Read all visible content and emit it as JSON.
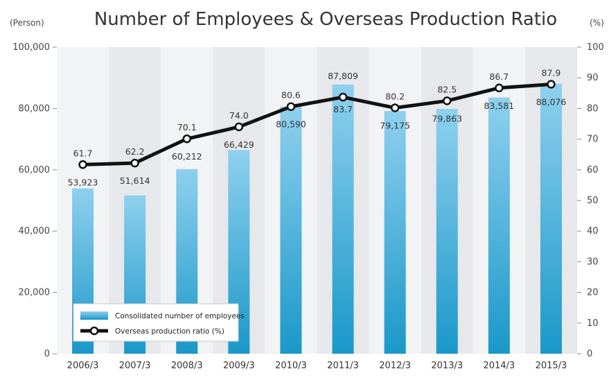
{
  "chart_data": {
    "type": "bar",
    "title": "Number of Employees & Overseas Production Ratio",
    "categories": [
      "2006/3",
      "2007/3",
      "2008/3",
      "2009/3",
      "2010/3",
      "2011/3",
      "2012/3",
      "2013/3",
      "2014/3",
      "2015/3"
    ],
    "left_axis": {
      "unit": "(Person)",
      "ylim": [
        0,
        100000
      ],
      "ticks": [
        0,
        20000,
        40000,
        60000,
        80000,
        100000
      ],
      "tick_labels": [
        "0",
        "20,000",
        "40,000",
        "60,000",
        "80,000",
        "100,000"
      ]
    },
    "right_axis": {
      "unit": "(%)",
      "ylim": [
        0,
        100
      ],
      "ticks": [
        0,
        10,
        20,
        30,
        40,
        50,
        60,
        70,
        80,
        90,
        100
      ],
      "tick_labels": [
        "0",
        "10",
        "20",
        "30",
        "40",
        "50",
        "60",
        "70",
        "80",
        "90",
        "100"
      ]
    },
    "series": [
      {
        "name": "Consolidated number of employees",
        "type": "bar",
        "axis": "left",
        "values": [
          53923,
          51614,
          60212,
          66429,
          80590,
          87809,
          79175,
          79863,
          83581,
          88076
        ],
        "labels": [
          "53,923",
          "51,614",
          "60,212",
          "66,429",
          "80,590",
          "87,809",
          "79,175",
          "79,863",
          "83,581",
          "88,076"
        ]
      },
      {
        "name": "Overseas production ratio (%)",
        "type": "line",
        "axis": "right",
        "values": [
          61.7,
          62.2,
          70.1,
          74.0,
          80.6,
          83.7,
          80.2,
          82.5,
          86.7,
          87.9
        ],
        "labels": [
          "61.7",
          "62.2",
          "70.1",
          "74.0",
          "80.6",
          "83.7",
          "80.2",
          "82.5",
          "86.7",
          "87.9"
        ]
      }
    ],
    "grid": false,
    "legend": "bottom-left",
    "colors": {
      "bar_top": "#8fd0ee",
      "bar_bottom": "#1a98c9",
      "line": "#111111",
      "marker_fill": "#ffffff",
      "band_light": "#f2f3f5",
      "band_dark": "#e6e8eb"
    }
  }
}
